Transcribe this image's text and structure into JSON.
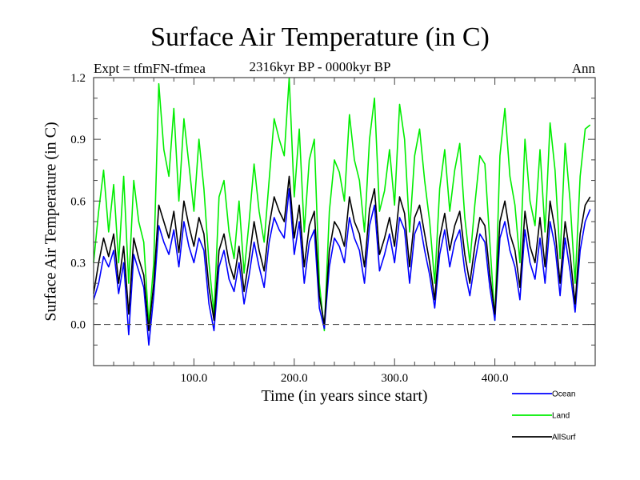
{
  "chart_data": {
    "type": "line",
    "title": "Surface Air Temperature (in C)",
    "subtitle": "2316kyr BP - 0000kyr BP",
    "annotation_left": "Expt = tfmFN-tfmea",
    "annotation_right": "Ann",
    "xlabel": "Time (in years since start)",
    "ylabel": "Surface Air Temperature (in C)",
    "xlim": [
      0,
      500
    ],
    "ylim": [
      -0.2,
      1.2
    ],
    "xticks": [
      100,
      200,
      300,
      400
    ],
    "xtick_labels": [
      "100.0",
      "200.0",
      "300.0",
      "400.0"
    ],
    "xminor_step": 20,
    "yticks": [
      0.0,
      0.3,
      0.6,
      0.9,
      1.2
    ],
    "ytick_labels": [
      "0.0",
      "0.3",
      "0.6",
      "0.9",
      "1.2"
    ],
    "yminor_step": 0.1,
    "reference_line": {
      "y": 0.0,
      "style": "dashed",
      "color": "#555555"
    },
    "grid": false,
    "legend_position": "bottom-right",
    "x_step": 5,
    "x_start": 0,
    "series": [
      {
        "name": "Ocean",
        "color": "#0000ff",
        "values": [
          0.12,
          0.2,
          0.33,
          0.28,
          0.36,
          0.15,
          0.3,
          -0.05,
          0.34,
          0.26,
          0.18,
          -0.1,
          0.14,
          0.48,
          0.4,
          0.34,
          0.46,
          0.28,
          0.5,
          0.38,
          0.3,
          0.42,
          0.36,
          0.1,
          -0.03,
          0.28,
          0.36,
          0.22,
          0.16,
          0.3,
          0.1,
          0.24,
          0.4,
          0.28,
          0.18,
          0.4,
          0.52,
          0.46,
          0.42,
          0.66,
          0.34,
          0.5,
          0.2,
          0.4,
          0.46,
          0.08,
          -0.02,
          0.28,
          0.42,
          0.38,
          0.3,
          0.52,
          0.42,
          0.36,
          0.2,
          0.48,
          0.58,
          0.26,
          0.34,
          0.44,
          0.3,
          0.52,
          0.46,
          0.2,
          0.44,
          0.5,
          0.36,
          0.24,
          0.08,
          0.34,
          0.46,
          0.28,
          0.4,
          0.46,
          0.26,
          0.14,
          0.3,
          0.44,
          0.4,
          0.18,
          0.02,
          0.42,
          0.5,
          0.36,
          0.28,
          0.12,
          0.46,
          0.3,
          0.22,
          0.42,
          0.2,
          0.5,
          0.38,
          0.14,
          0.42,
          0.26,
          0.06,
          0.36,
          0.5,
          0.56
        ]
      },
      {
        "name": "Land",
        "color": "#00ee00",
        "values": [
          0.3,
          0.55,
          0.75,
          0.45,
          0.68,
          0.3,
          0.72,
          0.2,
          0.7,
          0.5,
          0.4,
          0.0,
          0.3,
          1.17,
          0.85,
          0.72,
          1.05,
          0.6,
          1.0,
          0.78,
          0.55,
          0.9,
          0.66,
          0.3,
          0.05,
          0.62,
          0.7,
          0.45,
          0.32,
          0.6,
          0.25,
          0.5,
          0.78,
          0.55,
          0.4,
          0.7,
          1.0,
          0.9,
          0.82,
          1.2,
          0.62,
          0.95,
          0.45,
          0.8,
          0.9,
          0.2,
          -0.03,
          0.55,
          0.8,
          0.74,
          0.6,
          1.02,
          0.8,
          0.7,
          0.45,
          0.9,
          1.1,
          0.55,
          0.65,
          0.85,
          0.58,
          1.07,
          0.9,
          0.45,
          0.82,
          0.95,
          0.7,
          0.5,
          0.2,
          0.66,
          0.85,
          0.55,
          0.75,
          0.88,
          0.52,
          0.3,
          0.58,
          0.82,
          0.78,
          0.4,
          0.02,
          0.82,
          1.05,
          0.72,
          0.58,
          0.3,
          0.9,
          0.6,
          0.48,
          0.85,
          0.45,
          0.98,
          0.75,
          0.32,
          0.88,
          0.6,
          0.2,
          0.72,
          0.95,
          0.97
        ]
      },
      {
        "name": "AllSurf",
        "color": "#000000",
        "values": [
          0.15,
          0.3,
          0.42,
          0.33,
          0.44,
          0.2,
          0.38,
          0.05,
          0.42,
          0.32,
          0.24,
          -0.03,
          0.2,
          0.58,
          0.5,
          0.42,
          0.55,
          0.35,
          0.6,
          0.48,
          0.38,
          0.52,
          0.44,
          0.18,
          0.02,
          0.36,
          0.44,
          0.3,
          0.22,
          0.38,
          0.16,
          0.32,
          0.5,
          0.36,
          0.26,
          0.48,
          0.62,
          0.55,
          0.5,
          0.72,
          0.42,
          0.58,
          0.28,
          0.48,
          0.55,
          0.14,
          0.0,
          0.36,
          0.5,
          0.46,
          0.38,
          0.62,
          0.5,
          0.44,
          0.28,
          0.56,
          0.66,
          0.34,
          0.42,
          0.52,
          0.38,
          0.62,
          0.54,
          0.28,
          0.52,
          0.58,
          0.44,
          0.3,
          0.12,
          0.42,
          0.54,
          0.36,
          0.48,
          0.55,
          0.34,
          0.2,
          0.38,
          0.52,
          0.48,
          0.24,
          0.05,
          0.5,
          0.6,
          0.44,
          0.36,
          0.18,
          0.55,
          0.38,
          0.3,
          0.52,
          0.28,
          0.6,
          0.46,
          0.2,
          0.5,
          0.34,
          0.1,
          0.44,
          0.58,
          0.62
        ]
      }
    ]
  }
}
